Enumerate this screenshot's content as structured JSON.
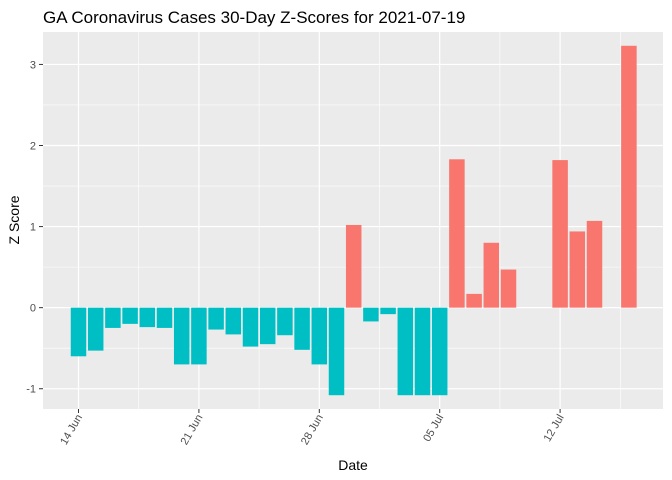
{
  "chart_data": {
    "type": "bar",
    "title": "GA Coronavirus Cases 30-Day Z-Scores for 2021-07-19",
    "xlabel": "Date",
    "ylabel": "Z Score",
    "ylim": [
      -1.25,
      3.4
    ],
    "y_ticks": [
      -1,
      0,
      1,
      2,
      3
    ],
    "x_ticks": [
      {
        "label": "14 Jun",
        "date": "2021-06-14"
      },
      {
        "label": "21 Jun",
        "date": "2021-06-21"
      },
      {
        "label": "28 Jun",
        "date": "2021-06-28"
      },
      {
        "label": "05 Jul",
        "date": "2021-07-05"
      },
      {
        "label": "12 Jul",
        "date": "2021-07-12"
      }
    ],
    "fill_colors": {
      "positive": "#F8766D",
      "negative": "#00BFC4"
    },
    "panel_color": "#EBEBEB",
    "grid_color": "#FFFFFF",
    "bars": [
      {
        "date": "2021-06-14",
        "value": -0.6
      },
      {
        "date": "2021-06-15",
        "value": -0.53
      },
      {
        "date": "2021-06-16",
        "value": -0.25
      },
      {
        "date": "2021-06-17",
        "value": -0.2
      },
      {
        "date": "2021-06-18",
        "value": -0.24
      },
      {
        "date": "2021-06-19",
        "value": -0.25
      },
      {
        "date": "2021-06-20",
        "value": -0.7
      },
      {
        "date": "2021-06-21",
        "value": -0.7
      },
      {
        "date": "2021-06-22",
        "value": -0.27
      },
      {
        "date": "2021-06-23",
        "value": -0.33
      },
      {
        "date": "2021-06-24",
        "value": -0.48
      },
      {
        "date": "2021-06-25",
        "value": -0.45
      },
      {
        "date": "2021-06-26",
        "value": -0.34
      },
      {
        "date": "2021-06-27",
        "value": -0.52
      },
      {
        "date": "2021-06-28",
        "value": -0.7
      },
      {
        "date": "2021-06-29",
        "value": -1.08
      },
      {
        "date": "2021-06-30",
        "value": 1.02
      },
      {
        "date": "2021-07-01",
        "value": -0.17
      },
      {
        "date": "2021-07-02",
        "value": -0.08
      },
      {
        "date": "2021-07-03",
        "value": -1.08
      },
      {
        "date": "2021-07-04",
        "value": -1.08
      },
      {
        "date": "2021-07-05",
        "value": -1.08
      },
      {
        "date": "2021-07-06",
        "value": 1.83
      },
      {
        "date": "2021-07-07",
        "value": 0.17
      },
      {
        "date": "2021-07-08",
        "value": 0.8
      },
      {
        "date": "2021-07-09",
        "value": 0.47
      },
      {
        "date": "2021-07-12",
        "value": 1.82
      },
      {
        "date": "2021-07-13",
        "value": 0.94
      },
      {
        "date": "2021-07-14",
        "value": 1.07
      },
      {
        "date": "2021-07-16",
        "value": 3.23
      }
    ]
  }
}
